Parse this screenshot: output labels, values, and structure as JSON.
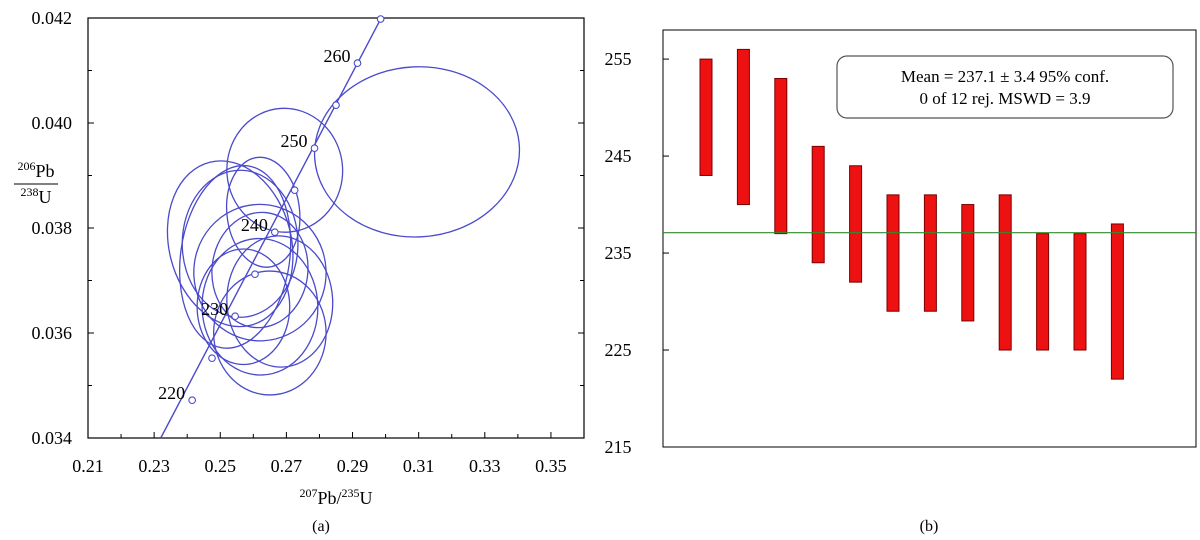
{
  "panels": {
    "a": "(a)",
    "b": "(b)"
  },
  "colors": {
    "ellipse": "#4a4acb",
    "concordia": "#4a4acb",
    "bar_fill": "#ee1111",
    "bar_stroke": "#7a0000",
    "mean_line": "#2e8b2e",
    "axis": "#000000"
  },
  "chart_data": [
    {
      "type": "scatter",
      "subtype": "concordia",
      "xlabel": {
        "sup": "207",
        "main": "Pb/",
        "sup2": "235",
        "main2": "U"
      },
      "ylabel": {
        "num_sup": "206",
        "num": "Pb",
        "den_sup": "238",
        "den": "U"
      },
      "xlim": [
        0.21,
        0.36
      ],
      "ylim": [
        0.034,
        0.042
      ],
      "x_ticks": [
        "0.21",
        "0.23",
        "0.25",
        "0.27",
        "0.29",
        "0.31",
        "0.33",
        "0.35"
      ],
      "y_ticks": [
        "0.034",
        "0.036",
        "0.038",
        "0.040",
        "0.042"
      ],
      "concordia": [
        [
          0.232,
          0.0334
        ],
        [
          0.2985,
          0.04198
        ]
      ],
      "age_markers": [
        {
          "x": 0.2415,
          "y": 0.03472,
          "label": "220"
        },
        {
          "x": 0.2475,
          "y": 0.03552,
          "label": ""
        },
        {
          "x": 0.2545,
          "y": 0.03632,
          "label": "230"
        },
        {
          "x": 0.2605,
          "y": 0.03712,
          "label": ""
        },
        {
          "x": 0.2665,
          "y": 0.03792,
          "label": "240"
        },
        {
          "x": 0.2725,
          "y": 0.03872,
          "label": ""
        },
        {
          "x": 0.2785,
          "y": 0.03952,
          "label": "250"
        },
        {
          "x": 0.285,
          "y": 0.04034,
          "label": ""
        },
        {
          "x": 0.2915,
          "y": 0.04114,
          "label": "260"
        },
        {
          "x": 0.2985,
          "y": 0.04198,
          "label": ""
        }
      ],
      "ellipses": [
        {
          "cx": 0.3095,
          "cy": 0.03945,
          "rx": 0.031,
          "ry": 0.00162,
          "angle": -3
        },
        {
          "cx": 0.2695,
          "cy": 0.0391,
          "rx": 0.0175,
          "ry": 0.00118,
          "angle": -4
        },
        {
          "cx": 0.253,
          "cy": 0.0377,
          "rx": 0.0185,
          "ry": 0.0016,
          "angle": -14
        },
        {
          "cx": 0.2545,
          "cy": 0.03745,
          "rx": 0.0165,
          "ry": 0.00175,
          "angle": 8
        },
        {
          "cx": 0.256,
          "cy": 0.0377,
          "rx": 0.0175,
          "ry": 0.0014,
          "angle": 0
        },
        {
          "cx": 0.262,
          "cy": 0.03715,
          "rx": 0.02,
          "ry": 0.0013,
          "angle": -3
        },
        {
          "cx": 0.262,
          "cy": 0.0365,
          "rx": 0.0175,
          "ry": 0.0013,
          "angle": -2
        },
        {
          "cx": 0.268,
          "cy": 0.0366,
          "rx": 0.016,
          "ry": 0.00125,
          "angle": -3
        },
        {
          "cx": 0.265,
          "cy": 0.036,
          "rx": 0.017,
          "ry": 0.00118,
          "angle": 0
        },
        {
          "cx": 0.262,
          "cy": 0.0372,
          "rx": 0.0145,
          "ry": 0.0011,
          "angle": 6
        },
        {
          "cx": 0.263,
          "cy": 0.0383,
          "rx": 0.011,
          "ry": 0.00105,
          "angle": -6
        },
        {
          "cx": 0.257,
          "cy": 0.0365,
          "rx": 0.014,
          "ry": 0.0011,
          "angle": 0
        }
      ]
    },
    {
      "type": "bar",
      "subtype": "weighted-mean",
      "ylim": [
        215,
        258
      ],
      "y_ticks": [
        "255",
        "245",
        "235",
        "225",
        "215"
      ],
      "mean": 237.1,
      "bars": [
        {
          "low": 243,
          "high": 255
        },
        {
          "low": 240,
          "high": 256
        },
        {
          "low": 237,
          "high": 253
        },
        {
          "low": 234,
          "high": 246
        },
        {
          "low": 232,
          "high": 244
        },
        {
          "low": 229,
          "high": 241
        },
        {
          "low": 229,
          "high": 241
        },
        {
          "low": 228,
          "high": 240
        },
        {
          "low": 225,
          "high": 241
        },
        {
          "low": 225,
          "high": 237
        },
        {
          "low": 225,
          "high": 237
        },
        {
          "low": 222,
          "high": 238
        }
      ],
      "annotation": {
        "line1": "Mean = 237.1 ± 3.4  95% conf.",
        "line2": "0 of 12 rej. MSWD = 3.9"
      }
    }
  ]
}
